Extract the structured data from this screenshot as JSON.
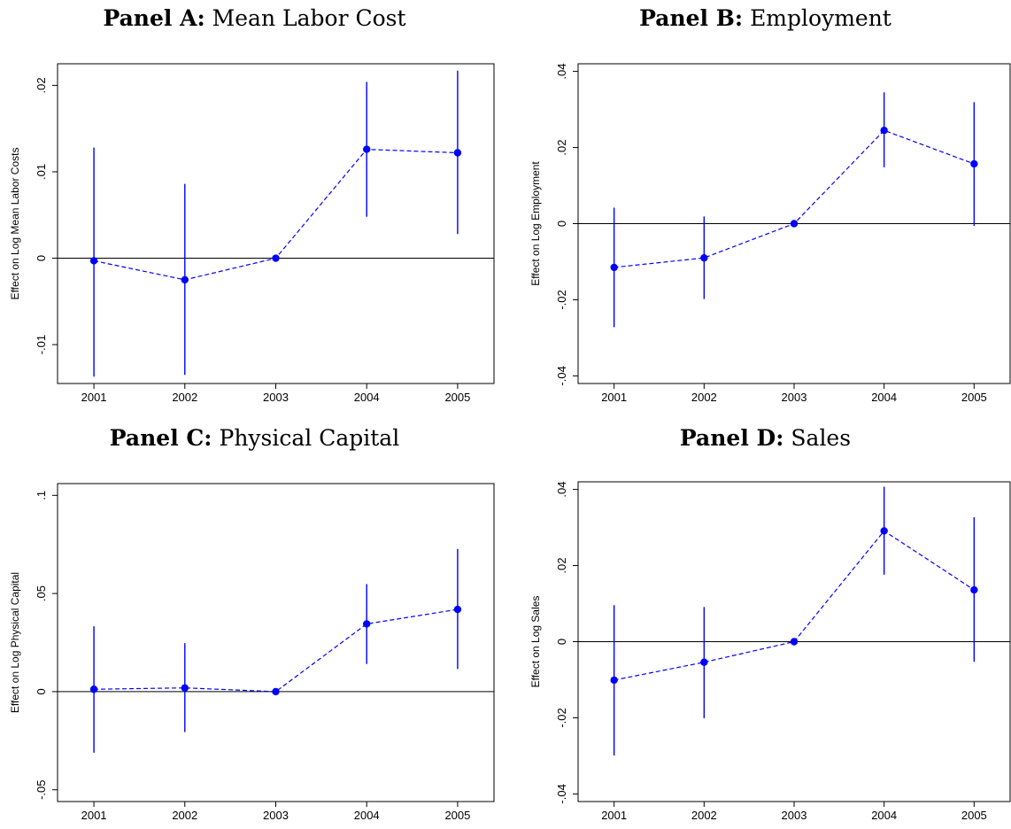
{
  "panels": [
    {
      "title_bold": "Panel A:",
      "title_rest": "Mean Labor Cost",
      "chart_data": {
        "type": "scatter",
        "x": [
          2001,
          2002,
          2003,
          2004,
          2005
        ],
        "xticks": [
          "2001",
          "2002",
          "2003",
          "2004",
          "2005"
        ],
        "ylabel": "Effect on Log Mean Labor Costs",
        "yticks": [
          -0.01,
          0,
          0.01,
          0.02
        ],
        "ytick_labels": [
          "-.01",
          "0",
          ".01",
          ".02"
        ],
        "ylim": [
          -0.0145,
          0.0225
        ],
        "xlim": [
          2000.6,
          2005.4
        ],
        "series": [
          {
            "estimate": [
              -0.0003,
              -0.0025,
              0.0,
              0.0126,
              0.0122
            ],
            "ci_low": [
              -0.0137,
              -0.0135,
              0.0,
              0.0048,
              0.0028
            ],
            "ci_high": [
              0.0128,
              0.0086,
              0.0,
              0.0204,
              0.0217
            ]
          }
        ],
        "reference_line": 0,
        "colors": {
          "estimate": "#0000ff",
          "ci": "#0000ff",
          "reference": "#000000"
        }
      }
    },
    {
      "title_bold": "Panel B:",
      "title_rest": "Employment",
      "chart_data": {
        "type": "scatter",
        "x": [
          2001,
          2002,
          2003,
          2004,
          2005
        ],
        "xticks": [
          "2001",
          "2002",
          "2003",
          "2004",
          "2005"
        ],
        "ylabel": "Effect on Log Employment",
        "yticks": [
          -0.04,
          -0.02,
          0,
          0.02,
          0.04
        ],
        "ytick_labels": [
          "-.04",
          "-.02",
          "0",
          ".02",
          ".04"
        ],
        "ylim": [
          -0.042,
          0.042
        ],
        "xlim": [
          2000.6,
          2005.4
        ],
        "series": [
          {
            "estimate": [
              -0.0115,
              -0.009,
              0.0,
              0.0245,
              0.0157
            ],
            "ci_low": [
              -0.0272,
              -0.0198,
              0.0,
              0.0148,
              -0.0006
            ],
            "ci_high": [
              0.0042,
              0.0019,
              0.0,
              0.0345,
              0.0319
            ]
          }
        ],
        "reference_line": 0,
        "colors": {
          "estimate": "#0000ff",
          "ci": "#0000ff",
          "reference": "#000000"
        }
      }
    },
    {
      "title_bold": "Panel C:",
      "title_rest": "Physical Capital",
      "chart_data": {
        "type": "scatter",
        "x": [
          2001,
          2002,
          2003,
          2004,
          2005
        ],
        "xticks": [
          "2001",
          "2002",
          "2003",
          "2004",
          "2005"
        ],
        "ylabel": "Effect on Log Physical Capital",
        "yticks": [
          -0.05,
          0,
          0.05,
          0.1
        ],
        "ytick_labels": [
          "-.05",
          "0",
          ".05",
          ".1"
        ],
        "ylim": [
          -0.056,
          0.106
        ],
        "xlim": [
          2000.6,
          2005.4
        ],
        "series": [
          {
            "estimate": [
              0.0012,
              0.0019,
              0.0,
              0.0345,
              0.0419
            ],
            "ci_low": [
              -0.0311,
              -0.0206,
              0.0,
              0.0141,
              0.0115
            ],
            "ci_high": [
              0.0333,
              0.0247,
              0.0,
              0.0548,
              0.0727
            ]
          }
        ],
        "reference_line": 0,
        "colors": {
          "estimate": "#0000ff",
          "ci": "#0000ff",
          "reference": "#000000"
        }
      }
    },
    {
      "title_bold": "Panel D:",
      "title_rest": "Sales",
      "chart_data": {
        "type": "scatter",
        "x": [
          2001,
          2002,
          2003,
          2004,
          2005
        ],
        "xticks": [
          "2001",
          "2002",
          "2003",
          "2004",
          "2005"
        ],
        "ylabel": "Effect on Log Sales",
        "yticks": [
          -0.04,
          -0.02,
          0,
          0.02,
          0.04
        ],
        "ytick_labels": [
          "-.04",
          "-.02",
          "0",
          ".02",
          ".04"
        ],
        "ylim": [
          -0.042,
          0.042
        ],
        "xlim": [
          2000.6,
          2005.4
        ],
        "series": [
          {
            "estimate": [
              -0.0101,
              -0.0054,
              0.0,
              0.0291,
              0.0136
            ],
            "ci_low": [
              -0.0299,
              -0.0201,
              0.0,
              0.0176,
              -0.0053
            ],
            "ci_high": [
              0.0096,
              0.0091,
              0.0,
              0.0407,
              0.0327
            ]
          }
        ],
        "reference_line": 0,
        "colors": {
          "estimate": "#0000ff",
          "ci": "#0000ff",
          "reference": "#000000"
        }
      }
    }
  ]
}
